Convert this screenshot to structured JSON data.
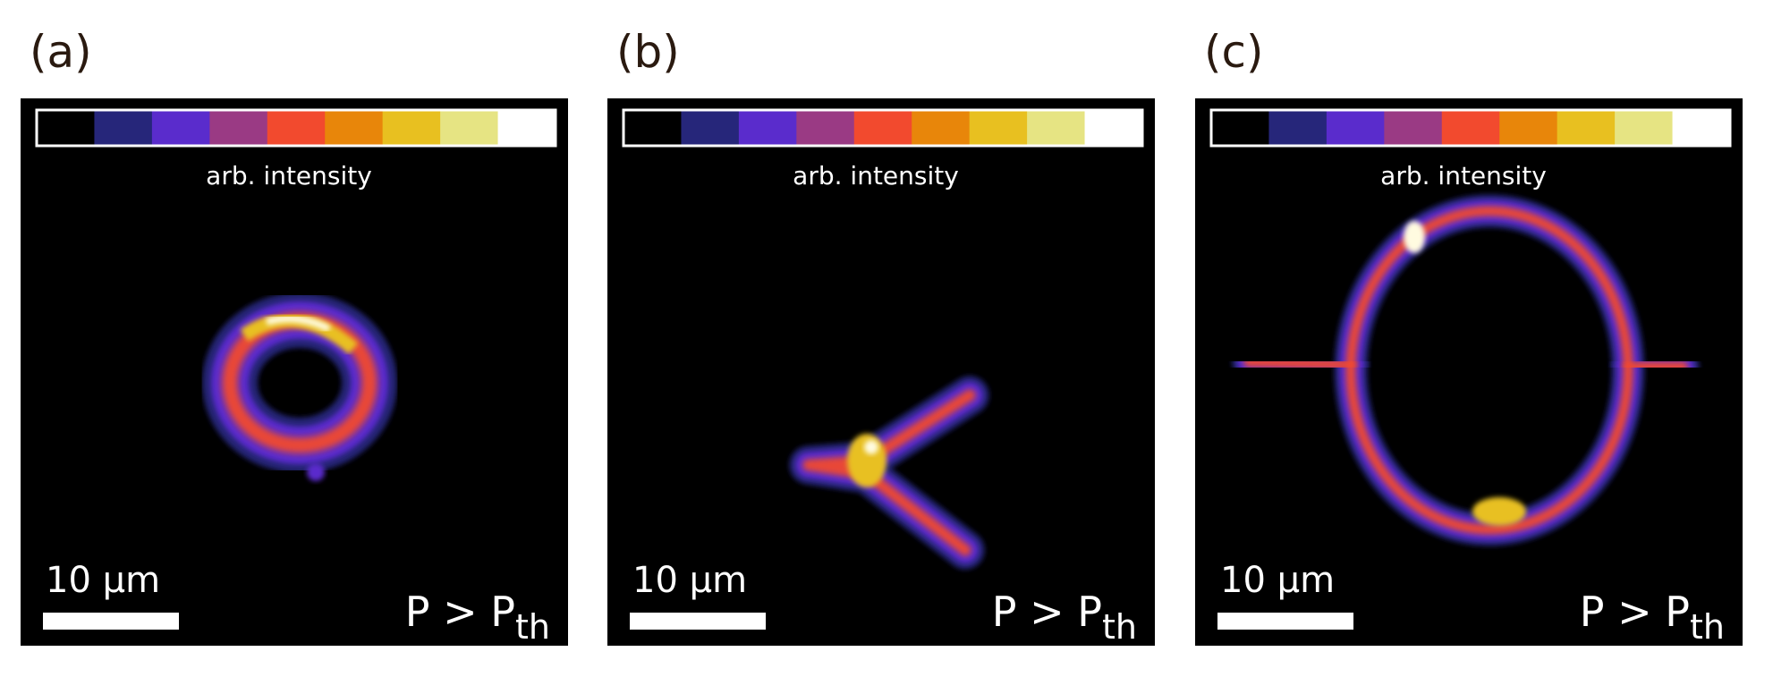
{
  "panels": [
    {
      "label": "(a)",
      "colorbar_label": "arb. intensity",
      "scale_bar_label": "10 μm",
      "annotation": "P > P",
      "annotation_subscript": "th"
    },
    {
      "label": "(b)",
      "colorbar_label": "arb. intensity",
      "scale_bar_label": "10 μm",
      "annotation": "P > P",
      "annotation_subscript": "th"
    },
    {
      "label": "(c)",
      "colorbar_label": "arb. intensity",
      "scale_bar_label": "10 μm",
      "annotation": "P > P",
      "annotation_subscript": "th"
    }
  ],
  "colorbar_colors": [
    "#000000",
    "#26267a",
    "#5a2ccc",
    "#9a3a84",
    "#f24a2e",
    "#e8860a",
    "#e8c020",
    "#e6e483",
    "#ffffff"
  ]
}
